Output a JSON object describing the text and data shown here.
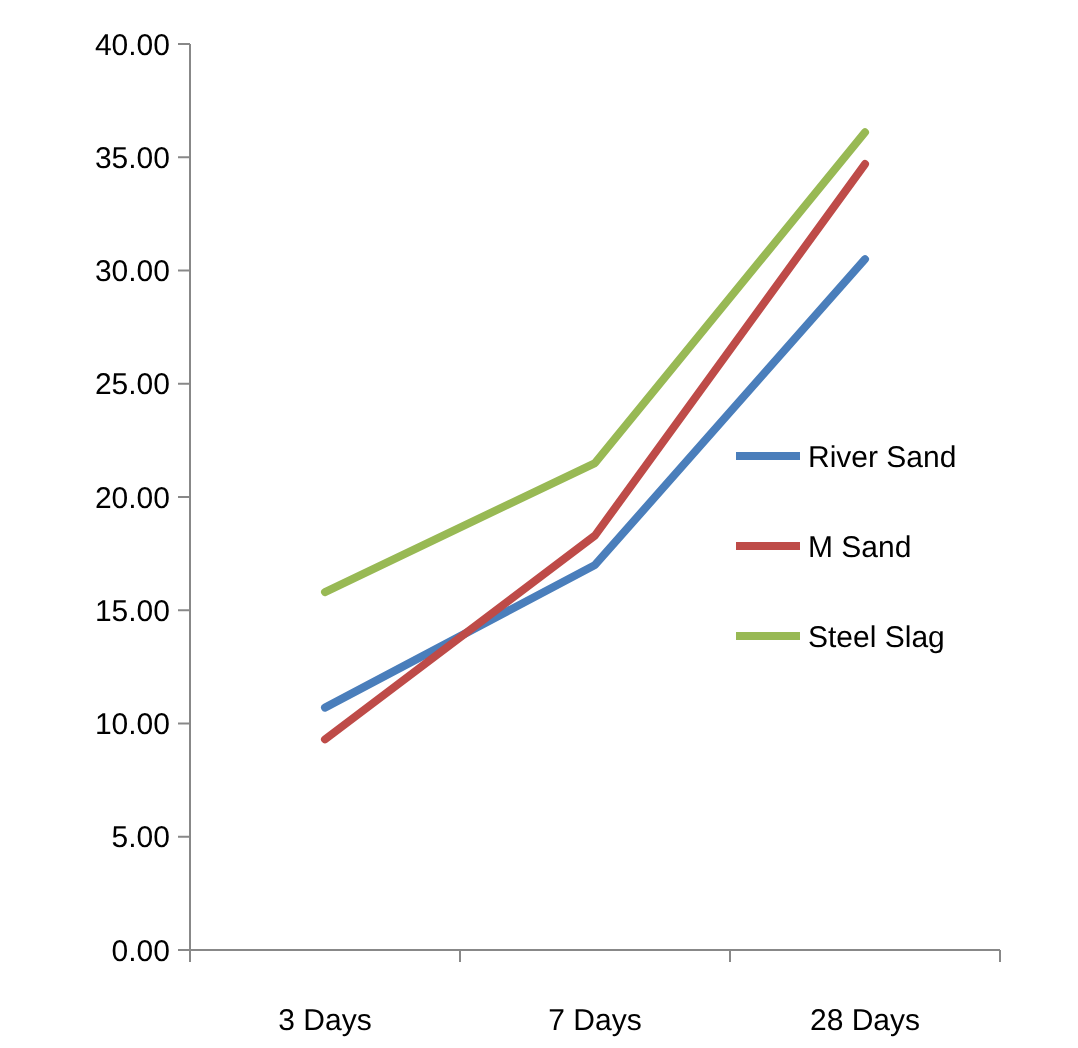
{
  "chart_data": {
    "type": "line",
    "categories": [
      "3 Days",
      "7 Days",
      "28 Days"
    ],
    "series": [
      {
        "name": "River Sand",
        "color": "#4a7ebb",
        "values": [
          10.7,
          17.0,
          30.5
        ]
      },
      {
        "name": "M Sand",
        "color": "#be4b48",
        "values": [
          9.3,
          18.3,
          34.7
        ]
      },
      {
        "name": "Steel Slag",
        "color": "#98b954",
        "values": [
          15.8,
          21.5,
          36.1
        ]
      }
    ],
    "ylim": [
      0,
      40
    ],
    "yticks": [
      {
        "value": 0,
        "label": "0.00"
      },
      {
        "value": 5,
        "label": "5.00"
      },
      {
        "value": 10,
        "label": "10.00"
      },
      {
        "value": 15,
        "label": "15.00"
      },
      {
        "value": 20,
        "label": "20.00"
      },
      {
        "value": 25,
        "label": "25.00"
      },
      {
        "value": 30,
        "label": "30.00"
      },
      {
        "value": 35,
        "label": "35.00"
      },
      {
        "value": 40,
        "label": "40.00"
      }
    ],
    "grid": false,
    "legend": "right",
    "marker": "none",
    "line_style": "solid"
  }
}
